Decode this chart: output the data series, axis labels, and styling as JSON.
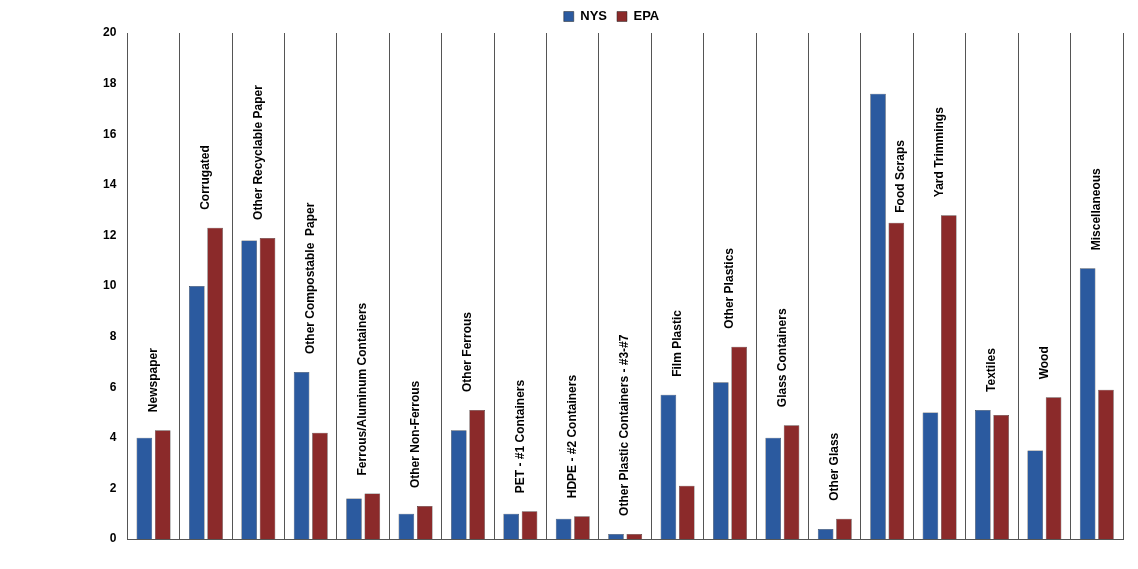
{
  "chart_data": {
    "type": "bar",
    "categories": [
      "Newspaper",
      "Corrugated",
      "Other Recyclable Paper",
      "Other Compostable  Paper",
      "Ferrous/Aluminum Containers",
      "Other Non-Ferrous",
      "Other Ferrous",
      "PET - #1 Containers",
      "HDPE - #2 Containers",
      "Other Plastic Containers - #3-#7",
      "Film Plastic",
      "Other Plastics",
      "Glass Containers",
      "Other Glass",
      "Food Scraps",
      "Yard Trimmings",
      "Textiles",
      "Wood",
      "Miscellaneous"
    ],
    "series": [
      {
        "name": "NYS",
        "color": "#2b5a9f",
        "values": [
          4.0,
          10.0,
          11.8,
          6.6,
          1.6,
          1.0,
          4.3,
          1.0,
          0.8,
          0.2,
          5.7,
          6.2,
          4.0,
          0.4,
          17.6,
          5.0,
          5.1,
          3.5,
          10.7
        ]
      },
      {
        "name": "EPA",
        "color": "#8b2a2a",
        "values": [
          4.3,
          12.3,
          11.9,
          4.2,
          1.8,
          1.3,
          5.1,
          1.1,
          0.9,
          0.2,
          2.1,
          7.6,
          4.5,
          0.8,
          12.5,
          12.8,
          4.9,
          5.6,
          5.9
        ]
      }
    ],
    "ylim": [
      0,
      20
    ],
    "yticks": [
      0,
      2,
      4,
      6,
      8,
      10,
      12,
      14,
      16,
      18,
      20
    ],
    "grid": "x",
    "legend": "top"
  }
}
